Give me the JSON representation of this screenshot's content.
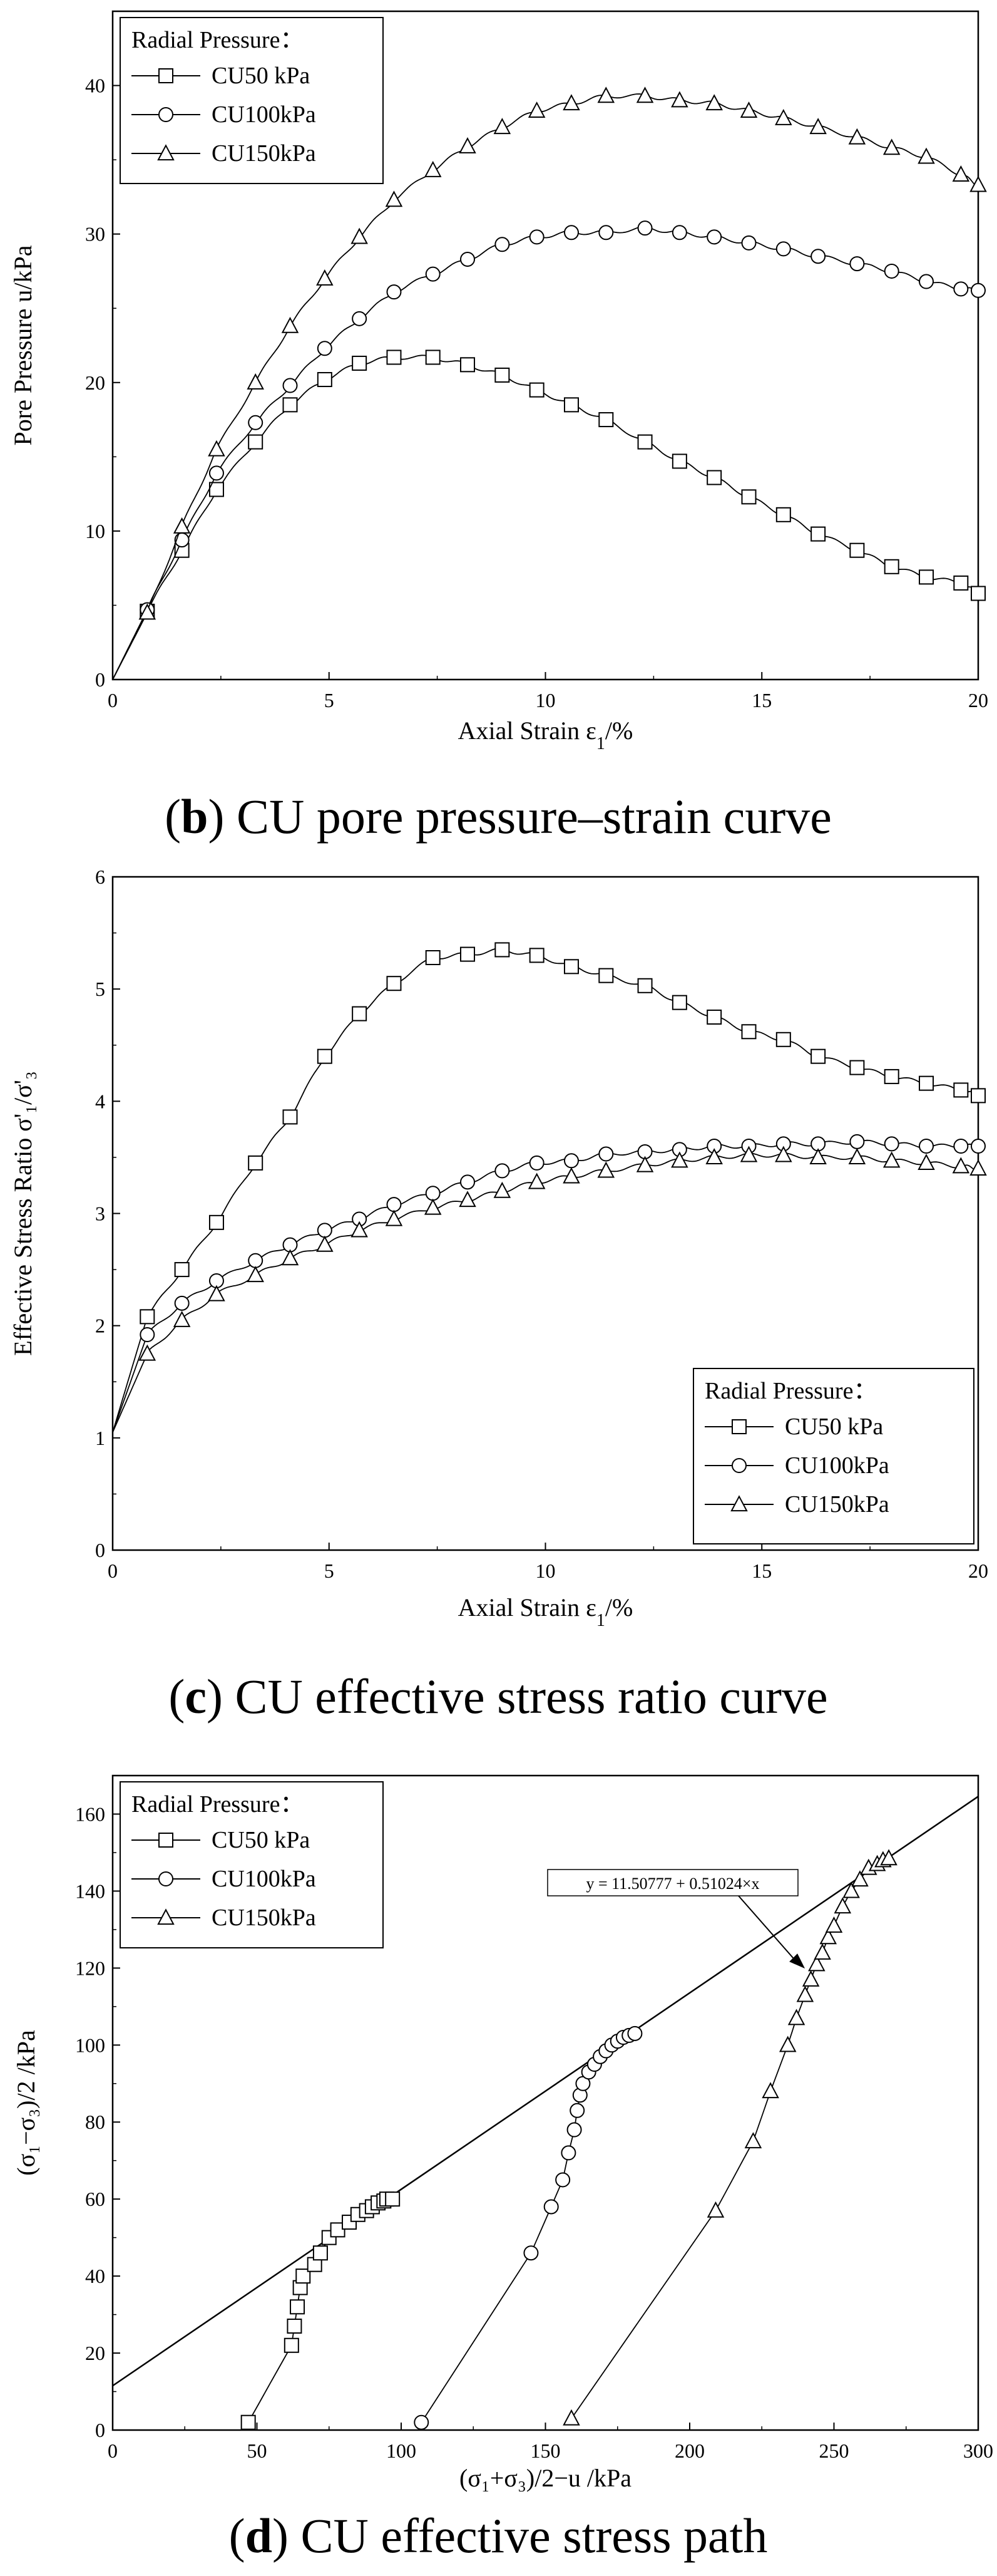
{
  "chart_data": [
    {
      "type": "line",
      "panel": "b",
      "caption_letter": "b",
      "caption_text": " CU pore pressure–strain curve",
      "xlabel": "Axial Strain  ε",
      "xlabel_sub": "1",
      "xlabel_suffix": "/%",
      "ylabel": "Pore Pressure  u/kPa",
      "xlim": [
        0,
        20
      ],
      "ylim": [
        0,
        45
      ],
      "xticks": [
        0,
        5,
        10,
        15,
        20
      ],
      "yticks": [
        0,
        10,
        20,
        30,
        40
      ],
      "legend_title": "Radial Pressure：",
      "legend_position": "top-left",
      "series": [
        {
          "name": "CU50 kPa",
          "marker": "square",
          "x": [
            0,
            0.8,
            1.6,
            2.4,
            3.3,
            4.1,
            4.9,
            5.7,
            6.5,
            7.4,
            8.2,
            9.0,
            9.8,
            10.6,
            11.4,
            12.3,
            13.1,
            13.9,
            14.7,
            15.5,
            16.3,
            17.2,
            18.0,
            18.8,
            19.6,
            20
          ],
          "y": [
            0,
            4.6,
            8.7,
            12.8,
            16.0,
            18.5,
            20.2,
            21.3,
            21.7,
            21.7,
            21.2,
            20.5,
            19.5,
            18.5,
            17.5,
            16.0,
            14.7,
            13.6,
            12.3,
            11.1,
            9.8,
            8.7,
            7.6,
            6.9,
            6.5,
            5.8
          ]
        },
        {
          "name": "CU100kPa",
          "marker": "circle",
          "x": [
            0,
            0.8,
            1.6,
            2.4,
            3.3,
            4.1,
            4.9,
            5.7,
            6.5,
            7.4,
            8.2,
            9.0,
            9.8,
            10.6,
            11.4,
            12.3,
            13.1,
            13.9,
            14.7,
            15.5,
            16.3,
            17.2,
            18.0,
            18.8,
            19.6,
            20
          ],
          "y": [
            0,
            4.7,
            9.4,
            13.9,
            17.3,
            19.8,
            22.3,
            24.3,
            26.1,
            27.3,
            28.3,
            29.3,
            29.8,
            30.1,
            30.1,
            30.4,
            30.1,
            29.8,
            29.4,
            29.0,
            28.5,
            28.0,
            27.5,
            26.8,
            26.3,
            26.2
          ]
        },
        {
          "name": "CU150kPa",
          "marker": "triangle",
          "x": [
            0,
            0.8,
            1.6,
            2.4,
            3.3,
            4.1,
            4.9,
            5.7,
            6.5,
            7.4,
            8.2,
            9.0,
            9.8,
            10.6,
            11.4,
            12.3,
            13.1,
            13.9,
            14.7,
            15.5,
            16.3,
            17.2,
            18.0,
            18.8,
            19.6,
            20
          ],
          "y": [
            0,
            4.5,
            10.3,
            15.5,
            20.0,
            23.8,
            27.0,
            29.8,
            32.3,
            34.3,
            35.9,
            37.2,
            38.3,
            38.8,
            39.3,
            39.3,
            39.0,
            38.8,
            38.3,
            37.8,
            37.2,
            36.5,
            35.8,
            35.2,
            34.0,
            33.3
          ]
        }
      ]
    },
    {
      "type": "line",
      "panel": "c",
      "caption_letter": "c",
      "caption_text": " CU effective stress ratio curve",
      "xlabel": "Axial Strain  ε",
      "xlabel_sub": "1",
      "xlabel_suffix": "/%",
      "ylabel": "Effective Stress Ratio σ'₁/σ'₃",
      "xlim": [
        0,
        20
      ],
      "ylim": [
        0,
        6
      ],
      "xticks": [
        0,
        5,
        10,
        15,
        20
      ],
      "yticks": [
        0,
        1,
        2,
        3,
        4,
        5,
        6
      ],
      "legend_title": "Radial Pressure：",
      "legend_position": "bottom-right",
      "series": [
        {
          "name": "CU50 kPa",
          "marker": "square",
          "x": [
            0,
            0.8,
            1.6,
            2.4,
            3.3,
            4.1,
            4.9,
            5.7,
            6.5,
            7.4,
            8.2,
            9.0,
            9.8,
            10.6,
            11.4,
            12.3,
            13.1,
            13.9,
            14.7,
            15.5,
            16.3,
            17.2,
            18.0,
            18.8,
            19.6,
            20
          ],
          "y": [
            1.05,
            2.08,
            2.5,
            2.92,
            3.45,
            3.86,
            4.4,
            4.78,
            5.05,
            5.28,
            5.31,
            5.35,
            5.3,
            5.2,
            5.12,
            5.03,
            4.88,
            4.75,
            4.62,
            4.55,
            4.4,
            4.3,
            4.22,
            4.16,
            4.1,
            4.05
          ]
        },
        {
          "name": "CU100kPa",
          "marker": "circle",
          "x": [
            0,
            0.8,
            1.6,
            2.4,
            3.3,
            4.1,
            4.9,
            5.7,
            6.5,
            7.4,
            8.2,
            9.0,
            9.8,
            10.6,
            11.4,
            12.3,
            13.1,
            13.9,
            14.7,
            15.5,
            16.3,
            17.2,
            18.0,
            18.8,
            19.6,
            20
          ],
          "y": [
            1.05,
            1.92,
            2.2,
            2.4,
            2.58,
            2.72,
            2.85,
            2.95,
            3.08,
            3.18,
            3.28,
            3.38,
            3.45,
            3.47,
            3.53,
            3.55,
            3.57,
            3.6,
            3.6,
            3.62,
            3.62,
            3.64,
            3.62,
            3.6,
            3.6,
            3.6
          ]
        },
        {
          "name": "CU150kPa",
          "marker": "triangle",
          "x": [
            0,
            0.8,
            1.6,
            2.4,
            3.3,
            4.1,
            4.9,
            5.7,
            6.5,
            7.4,
            8.2,
            9.0,
            9.8,
            10.6,
            11.4,
            12.3,
            13.1,
            13.9,
            14.7,
            15.5,
            16.3,
            17.2,
            18.0,
            18.8,
            19.6,
            20
          ],
          "y": [
            1.05,
            1.75,
            2.05,
            2.28,
            2.45,
            2.6,
            2.72,
            2.85,
            2.95,
            3.05,
            3.12,
            3.2,
            3.28,
            3.33,
            3.38,
            3.43,
            3.47,
            3.5,
            3.52,
            3.52,
            3.5,
            3.5,
            3.47,
            3.45,
            3.42,
            3.4
          ]
        }
      ]
    },
    {
      "type": "scatter",
      "panel": "d",
      "caption_letter": "d",
      "caption_text": " CU effective stress path",
      "xlabel": "(σ₁+σ₃)/2−u /kPa",
      "ylabel": "(σ₁−σ₃)/2 /kPa",
      "xlim": [
        0,
        300
      ],
      "ylim": [
        0,
        170
      ],
      "xticks": [
        0,
        50,
        100,
        150,
        200,
        250,
        300
      ],
      "yticks": [
        0,
        20,
        40,
        60,
        80,
        100,
        120,
        140,
        160
      ],
      "legend_title": "Radial Pressure：",
      "legend_position": "top-left",
      "fit_line": {
        "label": "y = 11.50777 + 0.51024×x",
        "intercept": 11.50777,
        "slope": 0.51024,
        "label_position": "top-right"
      },
      "series": [
        {
          "name": "CU50 kPa",
          "marker": "square",
          "x": [
            47,
            62,
            63,
            64,
            65,
            66,
            70,
            72,
            75,
            78,
            82,
            85,
            88,
            90,
            92,
            94,
            95,
            97
          ],
          "y": [
            2,
            22,
            27,
            32,
            37,
            40,
            43,
            46,
            50,
            52,
            54,
            56,
            57,
            58,
            59,
            59.5,
            60,
            60
          ]
        },
        {
          "name": "CU100kPa",
          "marker": "circle",
          "x": [
            107,
            145,
            152,
            156,
            158,
            160,
            161,
            162,
            163,
            165,
            167,
            169,
            171,
            173,
            175,
            177,
            179,
            181
          ],
          "y": [
            2,
            46,
            58,
            65,
            72,
            78,
            83,
            87,
            90,
            93,
            95,
            97,
            98.5,
            100,
            101,
            102,
            102.5,
            103
          ]
        },
        {
          "name": "CU150kPa",
          "marker": "triangle",
          "x": [
            159,
            209,
            222,
            228,
            234,
            237,
            240,
            242,
            244,
            246,
            248,
            250,
            253,
            256,
            259,
            262,
            265,
            267,
            269
          ],
          "y": [
            3,
            57,
            75,
            88,
            100,
            107,
            113,
            117,
            121,
            124,
            128,
            131,
            136,
            140,
            143,
            146,
            147,
            148,
            148.5
          ]
        }
      ]
    }
  ]
}
